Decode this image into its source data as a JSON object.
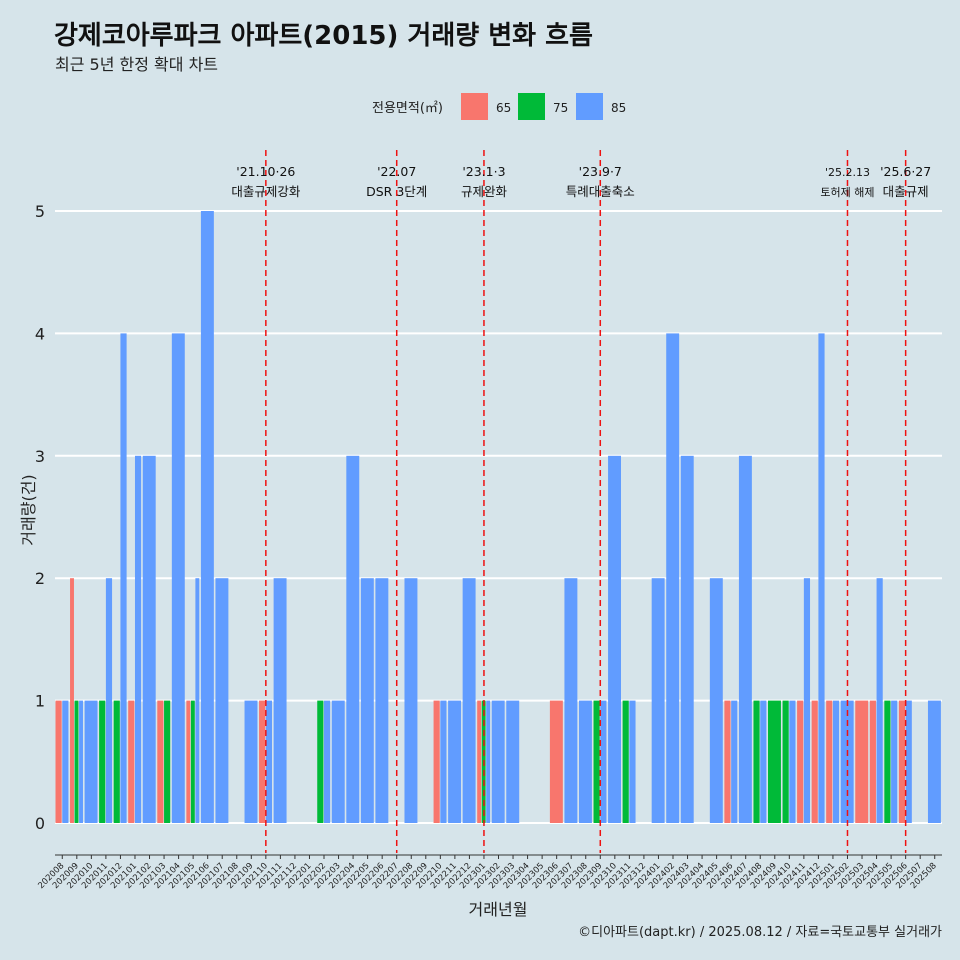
{
  "header": {
    "title": "강제코아루파크 아파트(2015) 거래량 변화 흐름",
    "subtitle": "최근 5년 한정 확대 차트"
  },
  "legend": {
    "title": "전용면적(㎡)",
    "items": [
      {
        "label": "65",
        "color": "#f8766d"
      },
      {
        "label": "75",
        "color": "#00ba38"
      },
      {
        "label": "85",
        "color": "#619cff"
      }
    ]
  },
  "caption": "©디아파트(dapt.kr) / 2025.08.12 / 자료=국토교통부 실거래가",
  "chart_data": {
    "type": "bar",
    "stacking": "dodge",
    "xlabel": "거래년월",
    "ylabel": "거래량(건)",
    "ylim": [
      0,
      5
    ],
    "yticks": [
      0,
      1,
      2,
      3,
      4,
      5
    ],
    "grid": "horizontal",
    "categories": [
      "202008",
      "202009",
      "202010",
      "202011",
      "202012",
      "202101",
      "202102",
      "202103",
      "202104",
      "202105",
      "202106",
      "202107",
      "202108",
      "202109",
      "202110",
      "202111",
      "202112",
      "202201",
      "202202",
      "202203",
      "202204",
      "202205",
      "202206",
      "202207",
      "202208",
      "202209",
      "202210",
      "202211",
      "202212",
      "202301",
      "202302",
      "202303",
      "202304",
      "202305",
      "202306",
      "202307",
      "202308",
      "202309",
      "202310",
      "202311",
      "202312",
      "202401",
      "202402",
      "202403",
      "202404",
      "202405",
      "202406",
      "202407",
      "202408",
      "202409",
      "202410",
      "202411",
      "202412",
      "202501",
      "202502",
      "202503",
      "202504",
      "202505",
      "202506",
      "202507",
      "202508"
    ],
    "series": [
      {
        "name": "65",
        "color": "#f8766d",
        "values": [
          1,
          2,
          0,
          0,
          0,
          1,
          0,
          1,
          0,
          1,
          0,
          0,
          0,
          0,
          1,
          0,
          0,
          0,
          0,
          0,
          0,
          0,
          0,
          0,
          0,
          0,
          1,
          0,
          0,
          1,
          0,
          0,
          0,
          0,
          1,
          0,
          0,
          0,
          0,
          0,
          0,
          0,
          0,
          0,
          0,
          0,
          1,
          0,
          0,
          0,
          0,
          1,
          1,
          1,
          0,
          1,
          1,
          0,
          1,
          0,
          0
        ]
      },
      {
        "name": "75",
        "color": "#00ba38",
        "values": [
          0,
          1,
          0,
          1,
          1,
          0,
          0,
          1,
          0,
          1,
          0,
          0,
          0,
          0,
          0,
          0,
          0,
          0,
          1,
          0,
          0,
          0,
          0,
          0,
          0,
          0,
          0,
          0,
          0,
          1,
          0,
          0,
          0,
          0,
          0,
          0,
          0,
          1,
          0,
          1,
          0,
          0,
          0,
          0,
          0,
          0,
          0,
          0,
          1,
          1,
          1,
          0,
          0,
          0,
          0,
          0,
          0,
          1,
          0,
          0,
          0
        ]
      },
      {
        "name": "85",
        "color": "#619cff",
        "values": [
          1,
          1,
          1,
          2,
          4,
          3,
          3,
          0,
          4,
          2,
          5,
          2,
          0,
          1,
          1,
          2,
          0,
          0,
          1,
          1,
          3,
          2,
          2,
          0,
          2,
          0,
          1,
          1,
          2,
          1,
          1,
          1,
          0,
          0,
          0,
          2,
          1,
          1,
          3,
          1,
          0,
          2,
          4,
          3,
          0,
          2,
          1,
          3,
          1,
          0,
          1,
          2,
          4,
          1,
          1,
          0,
          2,
          1,
          1,
          0,
          1
        ]
      }
    ],
    "events": [
      {
        "label_date": "'21.10·26",
        "label_text": "대출규제강화",
        "at": "202110"
      },
      {
        "label_date": "'22.07",
        "label_text": "DSR 3단계",
        "at": "202207"
      },
      {
        "label_date": "'23.1·3",
        "label_text": "규제완화",
        "at": "202301"
      },
      {
        "label_date": "'23.9·7",
        "label_text": "특례대출축소",
        "at": "202309"
      },
      {
        "label_date": "'25.2.13",
        "label_text": "토허제 해제",
        "at": "202502"
      },
      {
        "label_date": "'25.6·27",
        "label_text": "대출규제",
        "at": "202506"
      }
    ]
  }
}
